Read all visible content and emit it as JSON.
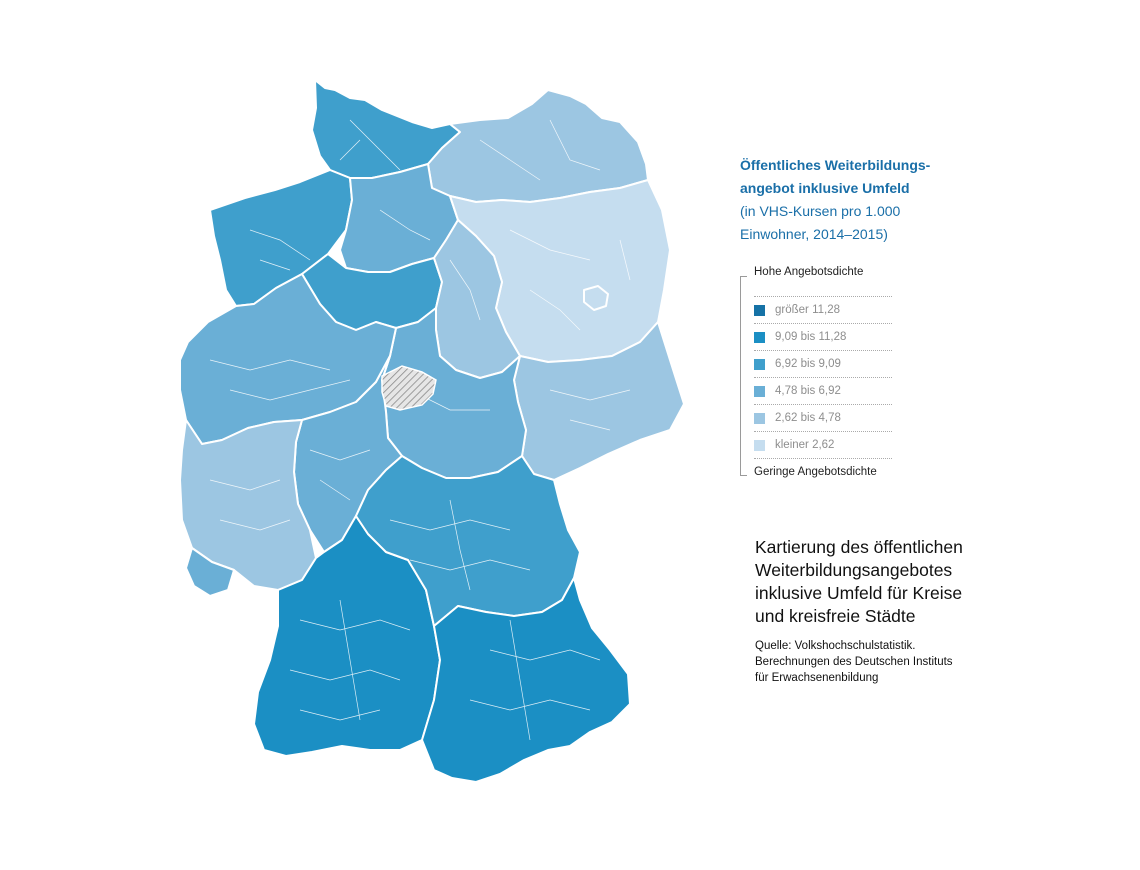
{
  "legend": {
    "title_line1": "Öffentliches Weiterbildungs-",
    "title_line2": "angebot inklusive Umfeld",
    "subtitle_line1": "(in VHS-Kursen pro 1.000",
    "subtitle_line2": "Einwohner, 2014–2015)",
    "high_label": "Hohe Angebotsdichte",
    "low_label": "Geringe Angebotsdichte",
    "classes": [
      {
        "label": "größer 11,28",
        "color": "#1672a6"
      },
      {
        "label": "9,09 bis 11,28",
        "color": "#1b8fc4"
      },
      {
        "label": "6,92 bis 9,09",
        "color": "#3f9fcc"
      },
      {
        "label": "4,78 bis 6,92",
        "color": "#6aafd6"
      },
      {
        "label": "2,62 bis 4,78",
        "color": "#9cc6e2"
      },
      {
        "label": "kleiner 2,62",
        "color": "#c5ddef"
      }
    ]
  },
  "caption": {
    "title": "Kartierung des öffentlichen Weiterbildungsangebotes inklusive Umfeld für Kreise und kreisfreie Städte",
    "source_line1": "Quelle: Volkshochschulstatistik.",
    "source_line2": "Berechnungen des Deutschen Instituts",
    "source_line3": "für Erwachsenenbildung"
  },
  "map": {
    "nodata_pattern": "hatched",
    "regions": [
      {
        "name": "schleswig-holstein",
        "class": 2
      },
      {
        "name": "mecklenburg-vorpommern",
        "class": 4
      },
      {
        "name": "niedersachsen-west",
        "class": 2
      },
      {
        "name": "niedersachsen-ost",
        "class": 3
      },
      {
        "name": "niedersachsen-sued",
        "class": 2
      },
      {
        "name": "brandenburg",
        "class": 5
      },
      {
        "name": "berlin",
        "class": 5
      },
      {
        "name": "sachsen-anhalt",
        "class": 4
      },
      {
        "name": "sachsen",
        "class": 4
      },
      {
        "name": "thueringen",
        "class": 3
      },
      {
        "name": "nordrhein-westfalen",
        "class": 3
      },
      {
        "name": "hessen",
        "class": 3
      },
      {
        "name": "rheinland-pfalz",
        "class": 4
      },
      {
        "name": "saarland",
        "class": 3
      },
      {
        "name": "baden-wuerttemberg",
        "class": 1
      },
      {
        "name": "bayern-nord",
        "class": 2
      },
      {
        "name": "bayern-sued",
        "class": 1
      }
    ]
  }
}
